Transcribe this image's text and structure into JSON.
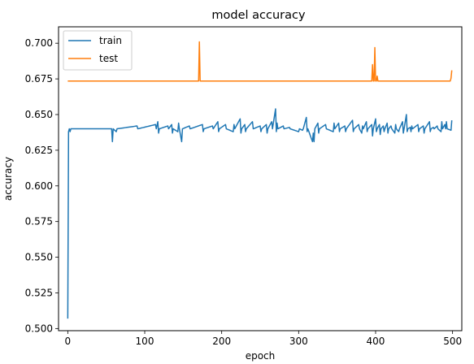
{
  "chart_data": {
    "type": "line",
    "title": "model accuracy",
    "xlabel": "epoch",
    "ylabel": "accuracy",
    "xlim": [
      -12,
      512
    ],
    "ylim": [
      0.4985,
      0.7115
    ],
    "xticks": [
      0,
      100,
      200,
      300,
      400,
      500
    ],
    "xtick_labels": [
      "0",
      "100",
      "200",
      "300",
      "400",
      "500"
    ],
    "yticks": [
      0.5,
      0.525,
      0.55,
      0.575,
      0.6,
      0.625,
      0.65,
      0.675,
      0.7
    ],
    "ytick_labels": [
      "0.500",
      "0.525",
      "0.550",
      "0.575",
      "0.600",
      "0.625",
      "0.650",
      "0.675",
      "0.700"
    ],
    "grid": false,
    "legend_position": "top-left",
    "series": [
      {
        "name": "train",
        "color": "#1f77b4",
        "base": 0.64,
        "length": 500,
        "points": [
          [
            0,
            0.507
          ],
          [
            1,
            0.638
          ],
          [
            2,
            0.64
          ],
          [
            3,
            0.638
          ],
          [
            4,
            0.64
          ],
          [
            57,
            0.64
          ],
          [
            58,
            0.631
          ],
          [
            59,
            0.64
          ],
          [
            63,
            0.638
          ],
          [
            64,
            0.64
          ],
          [
            90,
            0.642
          ],
          [
            91,
            0.64
          ],
          [
            114,
            0.643
          ],
          [
            115,
            0.64
          ],
          [
            117,
            0.645
          ],
          [
            118,
            0.637
          ],
          [
            119,
            0.64
          ],
          [
            130,
            0.642
          ],
          [
            131,
            0.64
          ],
          [
            135,
            0.643
          ],
          [
            136,
            0.637
          ],
          [
            137,
            0.64
          ],
          [
            143,
            0.638
          ],
          [
            144,
            0.644
          ],
          [
            145,
            0.64
          ],
          [
            148,
            0.631
          ],
          [
            149,
            0.64
          ],
          [
            158,
            0.642
          ],
          [
            159,
            0.64
          ],
          [
            175,
            0.643
          ],
          [
            176,
            0.638
          ],
          [
            177,
            0.64
          ],
          [
            188,
            0.642
          ],
          [
            189,
            0.64
          ],
          [
            195,
            0.645
          ],
          [
            196,
            0.638
          ],
          [
            197,
            0.64
          ],
          [
            205,
            0.643
          ],
          [
            206,
            0.64
          ],
          [
            215,
            0.638
          ],
          [
            216,
            0.643
          ],
          [
            217,
            0.64
          ],
          [
            224,
            0.647
          ],
          [
            225,
            0.637
          ],
          [
            226,
            0.64
          ],
          [
            230,
            0.643
          ],
          [
            231,
            0.638
          ],
          [
            232,
            0.64
          ],
          [
            240,
            0.645
          ],
          [
            241,
            0.64
          ],
          [
            250,
            0.642
          ],
          [
            251,
            0.638
          ],
          [
            252,
            0.64
          ],
          [
            258,
            0.643
          ],
          [
            259,
            0.637
          ],
          [
            260,
            0.64
          ],
          [
            265,
            0.645
          ],
          [
            266,
            0.64
          ],
          [
            270,
            0.654
          ],
          [
            271,
            0.638
          ],
          [
            272,
            0.644
          ],
          [
            273,
            0.64
          ],
          [
            280,
            0.642
          ],
          [
            281,
            0.64
          ],
          [
            288,
            0.641
          ],
          [
            289,
            0.64
          ],
          [
            300,
            0.638
          ],
          [
            301,
            0.64
          ],
          [
            305,
            0.639
          ],
          [
            306,
            0.64
          ],
          [
            310,
            0.648
          ],
          [
            311,
            0.638
          ],
          [
            312,
            0.64
          ],
          [
            318,
            0.631
          ],
          [
            319,
            0.637
          ],
          [
            320,
            0.631
          ],
          [
            321,
            0.64
          ],
          [
            325,
            0.644
          ],
          [
            326,
            0.637
          ],
          [
            327,
            0.64
          ],
          [
            335,
            0.643
          ],
          [
            336,
            0.64
          ],
          [
            345,
            0.638
          ],
          [
            346,
            0.644
          ],
          [
            347,
            0.64
          ],
          [
            352,
            0.644
          ],
          [
            353,
            0.638
          ],
          [
            354,
            0.64
          ],
          [
            360,
            0.642
          ],
          [
            361,
            0.638
          ],
          [
            362,
            0.64
          ],
          [
            370,
            0.646
          ],
          [
            371,
            0.638
          ],
          [
            372,
            0.64
          ],
          [
            378,
            0.643
          ],
          [
            379,
            0.64
          ],
          [
            382,
            0.637
          ],
          [
            383,
            0.642
          ],
          [
            384,
            0.64
          ],
          [
            388,
            0.645
          ],
          [
            389,
            0.638
          ],
          [
            390,
            0.64
          ],
          [
            395,
            0.643
          ],
          [
            396,
            0.635
          ],
          [
            397,
            0.64
          ],
          [
            400,
            0.647
          ],
          [
            401,
            0.638
          ],
          [
            402,
            0.64
          ],
          [
            405,
            0.643
          ],
          [
            406,
            0.636
          ],
          [
            407,
            0.64
          ],
          [
            410,
            0.642
          ],
          [
            411,
            0.638
          ],
          [
            412,
            0.64
          ],
          [
            415,
            0.644
          ],
          [
            416,
            0.637
          ],
          [
            417,
            0.64
          ],
          [
            420,
            0.642
          ],
          [
            421,
            0.64
          ],
          [
            425,
            0.637
          ],
          [
            426,
            0.643
          ],
          [
            427,
            0.64
          ],
          [
            430,
            0.638
          ],
          [
            431,
            0.64
          ],
          [
            435,
            0.645
          ],
          [
            436,
            0.637
          ],
          [
            437,
            0.64
          ],
          [
            440,
            0.65
          ],
          [
            441,
            0.638
          ],
          [
            442,
            0.64
          ],
          [
            445,
            0.641
          ],
          [
            446,
            0.638
          ],
          [
            447,
            0.642
          ],
          [
            448,
            0.64
          ],
          [
            455,
            0.643
          ],
          [
            456,
            0.638
          ],
          [
            457,
            0.64
          ],
          [
            462,
            0.642
          ],
          [
            463,
            0.637
          ],
          [
            464,
            0.64
          ],
          [
            470,
            0.645
          ],
          [
            471,
            0.638
          ],
          [
            472,
            0.64
          ],
          [
            475,
            0.641
          ],
          [
            476,
            0.64
          ],
          [
            480,
            0.642
          ],
          [
            481,
            0.64
          ],
          [
            485,
            0.638
          ],
          [
            486,
            0.645
          ],
          [
            487,
            0.64
          ],
          [
            490,
            0.643
          ],
          [
            491,
            0.64
          ],
          [
            492,
            0.645
          ],
          [
            493,
            0.64
          ],
          [
            498,
            0.639
          ],
          [
            499,
            0.646
          ]
        ]
      },
      {
        "name": "test",
        "color": "#ff7f0e",
        "base": 0.6735,
        "length": 500,
        "points": [
          [
            0,
            0.6735
          ],
          [
            170,
            0.6735
          ],
          [
            171,
            0.701
          ],
          [
            172,
            0.6735
          ],
          [
            395,
            0.6735
          ],
          [
            396,
            0.685
          ],
          [
            397,
            0.6735
          ],
          [
            398,
            0.6735
          ],
          [
            399,
            0.697
          ],
          [
            400,
            0.6735
          ],
          [
            401,
            0.6735
          ],
          [
            402,
            0.677
          ],
          [
            403,
            0.6735
          ],
          [
            496,
            0.6735
          ],
          [
            497,
            0.6735
          ],
          [
            498,
            0.6755
          ],
          [
            499,
            0.681
          ]
        ]
      }
    ]
  }
}
